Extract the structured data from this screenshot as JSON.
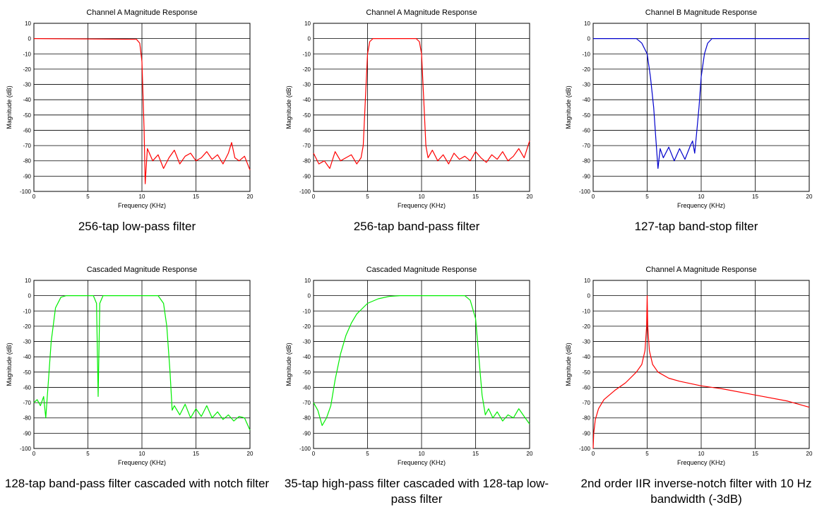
{
  "chart_data": [
    {
      "type": "line",
      "title": "Channel A Magnitude Response",
      "xlabel": "Frequency (KHz)",
      "ylabel": "Magnitude (dB)",
      "xlim": [
        0,
        20
      ],
      "ylim": [
        -100,
        10
      ],
      "x_ticks": [
        "0",
        "5",
        "10",
        "15",
        "20"
      ],
      "y_ticks": [
        "10",
        "0",
        "-10",
        "-20",
        "-30",
        "-40",
        "-50",
        "-60",
        "-70",
        "-80",
        "-90",
        "-100"
      ],
      "grid": true,
      "series": [
        {
          "color": "#ff0000",
          "x": [
            0,
            9.5,
            9.8,
            10.0,
            10.2,
            10.3,
            10.5,
            11,
            11.5,
            12,
            12.5,
            13,
            13.5,
            14,
            14.5,
            15,
            15.5,
            16,
            16.5,
            17,
            17.5,
            18,
            18.3,
            18.6,
            19,
            19.5,
            20
          ],
          "y": [
            0,
            -0.5,
            -3,
            -15,
            -60,
            -95,
            -72,
            -80,
            -76,
            -85,
            -78,
            -73,
            -82,
            -77,
            -75,
            -80,
            -78,
            -74,
            -79,
            -76,
            -82,
            -75,
            -68,
            -78,
            -80,
            -77,
            -86
          ]
        }
      ],
      "caption": "256-tap low-pass filter"
    },
    {
      "type": "line",
      "title": "Channel A Magnitude Response",
      "xlabel": "Frequency (KHz)",
      "ylabel": "Magnitude (dB)",
      "xlim": [
        0,
        20
      ],
      "ylim": [
        -100,
        10
      ],
      "x_ticks": [
        "0",
        "5",
        "10",
        "15",
        "20"
      ],
      "y_ticks": [
        "10",
        "0",
        "-10",
        "-20",
        "-30",
        "-40",
        "-50",
        "-60",
        "-70",
        "-80",
        "-90",
        "-100"
      ],
      "grid": true,
      "series": [
        {
          "color": "#ff0000",
          "x": [
            0,
            0.5,
            1,
            1.5,
            2,
            2.5,
            3,
            3.5,
            4,
            4.4,
            4.6,
            4.8,
            5.0,
            5.2,
            5.5,
            9.5,
            9.8,
            10.0,
            10.2,
            10.4,
            10.6,
            11,
            11.5,
            12,
            12.5,
            13,
            13.5,
            14,
            14.5,
            15,
            15.5,
            16,
            16.5,
            17,
            17.5,
            18,
            18.5,
            19,
            19.5,
            20
          ],
          "y": [
            -75,
            -82,
            -80,
            -85,
            -74,
            -80,
            -78,
            -76,
            -82,
            -78,
            -70,
            -40,
            -10,
            -2,
            0,
            0,
            -2,
            -10,
            -40,
            -70,
            -78,
            -73,
            -80,
            -76,
            -82,
            -75,
            -79,
            -77,
            -80,
            -74,
            -78,
            -81,
            -76,
            -79,
            -74,
            -80,
            -77,
            -72,
            -78,
            -67
          ]
        }
      ],
      "caption": "256-tap band-pass filter"
    },
    {
      "type": "line",
      "title": "Channel B Magnitude Response",
      "xlabel": "Frequency (KHz)",
      "ylabel": "Magnitude (dB)",
      "xlim": [
        0,
        20
      ],
      "ylim": [
        -100,
        10
      ],
      "x_ticks": [
        "0",
        "5",
        "10",
        "15",
        "20"
      ],
      "y_ticks": [
        "10",
        "0",
        "-10",
        "-20",
        "-30",
        "-40",
        "-50",
        "-60",
        "-70",
        "-80",
        "-90",
        "-100"
      ],
      "grid": true,
      "series": [
        {
          "color": "#0000cc",
          "x": [
            0,
            4.0,
            4.5,
            5.0,
            5.3,
            5.6,
            5.8,
            6.0,
            6.2,
            6.5,
            7.0,
            7.5,
            8.0,
            8.5,
            9.0,
            9.2,
            9.4,
            9.6,
            9.8,
            10.0,
            10.3,
            10.6,
            11,
            20
          ],
          "y": [
            0,
            0,
            -3,
            -10,
            -25,
            -45,
            -65,
            -85,
            -72,
            -78,
            -71,
            -80,
            -72,
            -79,
            -70,
            -67,
            -75,
            -60,
            -45,
            -25,
            -10,
            -3,
            0,
            0
          ]
        }
      ],
      "caption": "127-tap band-stop filter"
    },
    {
      "type": "line",
      "title": "Cascaded Magnitude Response",
      "xlabel": "Frequency (KHz)",
      "ylabel": "Magnitude (dB)",
      "xlim": [
        0,
        20
      ],
      "ylim": [
        -100,
        10
      ],
      "x_ticks": [
        "0",
        "5",
        "10",
        "15",
        "20"
      ],
      "y_ticks": [
        "10",
        "0",
        "-10",
        "-20",
        "-30",
        "-40",
        "-50",
        "-60",
        "-70",
        "-80",
        "-90",
        "-100"
      ],
      "grid": true,
      "series": [
        {
          "color": "#00ee00",
          "x": [
            0,
            0.3,
            0.6,
            0.9,
            1.1,
            1.3,
            1.6,
            2.0,
            2.5,
            3.0,
            5.5,
            5.8,
            5.95,
            6.1,
            6.4,
            7.0,
            11.5,
            12.0,
            12.3,
            12.6,
            12.8,
            13.0,
            13.5,
            14,
            14.5,
            15,
            15.5,
            16,
            16.5,
            17,
            17.5,
            18,
            18.5,
            19,
            19.5,
            20
          ],
          "y": [
            -70,
            -68,
            -72,
            -66,
            -80,
            -60,
            -30,
            -8,
            -1,
            0,
            0,
            -5,
            -66,
            -5,
            0,
            0,
            0,
            -5,
            -20,
            -50,
            -75,
            -72,
            -78,
            -71,
            -80,
            -74,
            -79,
            -72,
            -80,
            -76,
            -81,
            -78,
            -82,
            -79,
            -80,
            -88
          ]
        }
      ],
      "caption": "128-tap band-pass filter cascaded with notch filter"
    },
    {
      "type": "line",
      "title": "Cascaded Magnitude Response",
      "xlabel": "Frequency (KHz)",
      "ylabel": "Magnitude (dB)",
      "xlim": [
        0,
        20
      ],
      "ylim": [
        -100,
        10
      ],
      "x_ticks": [
        "0",
        "5",
        "10",
        "15",
        "20"
      ],
      "y_ticks": [
        "10",
        "0",
        "-10",
        "-20",
        "-30",
        "-40",
        "-50",
        "-60",
        "-70",
        "-80",
        "-90",
        "-100"
      ],
      "grid": true,
      "series": [
        {
          "color": "#00ee00",
          "x": [
            0,
            0.4,
            0.8,
            1.2,
            1.6,
            2.0,
            2.5,
            3.0,
            3.5,
            4.0,
            5.0,
            6.0,
            7.0,
            8.0,
            14.0,
            14.5,
            15.0,
            15.3,
            15.6,
            15.9,
            16.2,
            16.6,
            17.0,
            17.5,
            18.0,
            18.5,
            19.0,
            19.5,
            20
          ],
          "y": [
            -70,
            -75,
            -85,
            -80,
            -72,
            -55,
            -38,
            -26,
            -18,
            -12,
            -5,
            -2,
            -0.5,
            0,
            0,
            -3,
            -15,
            -40,
            -65,
            -78,
            -74,
            -80,
            -76,
            -82,
            -78,
            -80,
            -74,
            -79,
            -84
          ]
        }
      ],
      "caption": "35-tap high-pass filter cascaded with 128-tap low-pass filter"
    },
    {
      "type": "line",
      "title": "Channel A Magnitude Response",
      "xlabel": "Frequency (KHz)",
      "ylabel": "Magnitude (dB)",
      "xlim": [
        0,
        20
      ],
      "ylim": [
        -100,
        10
      ],
      "x_ticks": [
        "0",
        "5",
        "10",
        "15",
        "20"
      ],
      "y_ticks": [
        "10",
        "0",
        "-10",
        "-20",
        "-30",
        "-40",
        "-50",
        "-60",
        "-70",
        "-80",
        "-90",
        "-100"
      ],
      "grid": true,
      "series": [
        {
          "color": "#ff0000",
          "x": [
            0,
            0.05,
            0.2,
            0.5,
            1.0,
            2.0,
            3.0,
            4.0,
            4.5,
            4.8,
            4.95,
            5.0,
            5.05,
            5.2,
            5.5,
            6.0,
            7.0,
            8.0,
            10.0,
            12.0,
            15.0,
            18.0,
            20.0
          ],
          "y": [
            -100,
            -90,
            -81,
            -74,
            -68,
            -62,
            -57,
            -50,
            -45,
            -36,
            -20,
            0,
            -20,
            -36,
            -45,
            -50,
            -54,
            -56,
            -59,
            -61,
            -65,
            -69,
            -73
          ]
        }
      ],
      "caption": "2nd order IIR inverse-notch filter with 10 Hz bandwidth (-3dB)"
    }
  ]
}
